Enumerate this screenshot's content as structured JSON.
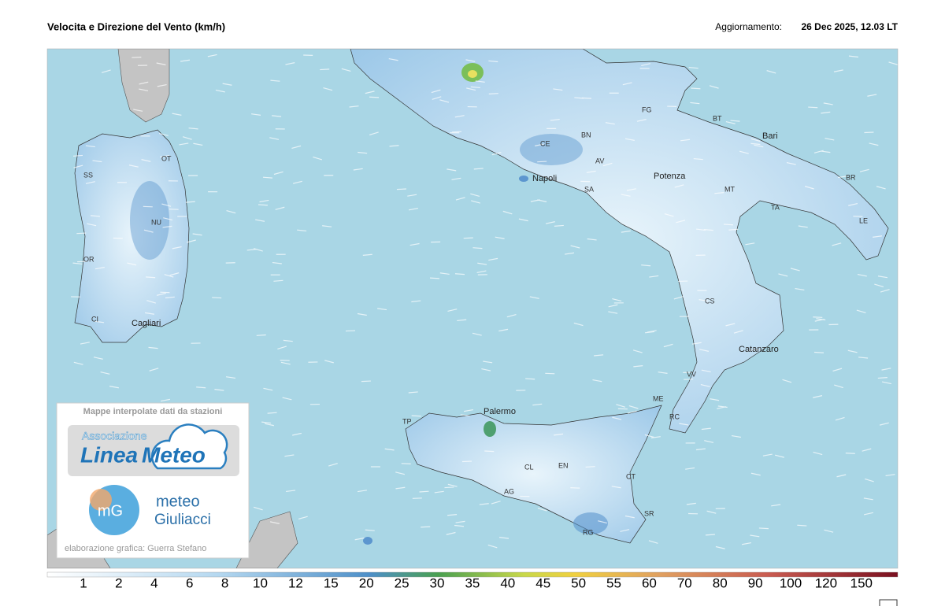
{
  "header": {
    "title": "Velocita e Direzione del Vento  (km/h)",
    "update_label": "Aggiornamento:",
    "update_time": "26 Dec 2025, 12.03 LT"
  },
  "map": {
    "labels": [
      "SS",
      "OT",
      "NU",
      "OR",
      "CI",
      "Cagliari",
      "Napoli",
      "CE",
      "BN",
      "AV",
      "SA",
      "FG",
      "BT",
      "Bari",
      "Potenza",
      "MT",
      "TA",
      "BR",
      "LE",
      "CS",
      "Catanzaro",
      "VV",
      "RC",
      "ME",
      "Palermo",
      "TP",
      "CL",
      "EN",
      "CT",
      "AG",
      "SR",
      "RG"
    ]
  },
  "logo_box": {
    "caption": "Mappe interpolate dati da stazioni",
    "association": "Associazione",
    "brand_1": "Linea",
    "brand_2": "Meteo",
    "mg_icon": "mG",
    "meteo": "meteo",
    "giuliacci": "Giuliacci",
    "credit": "elaborazione grafica: Guerra Stefano"
  },
  "color_scale": {
    "ticks": [
      1,
      2,
      4,
      6,
      8,
      10,
      12,
      15,
      20,
      25,
      30,
      35,
      40,
      45,
      50,
      55,
      60,
      70,
      80,
      90,
      100,
      120,
      150
    ]
  }
}
